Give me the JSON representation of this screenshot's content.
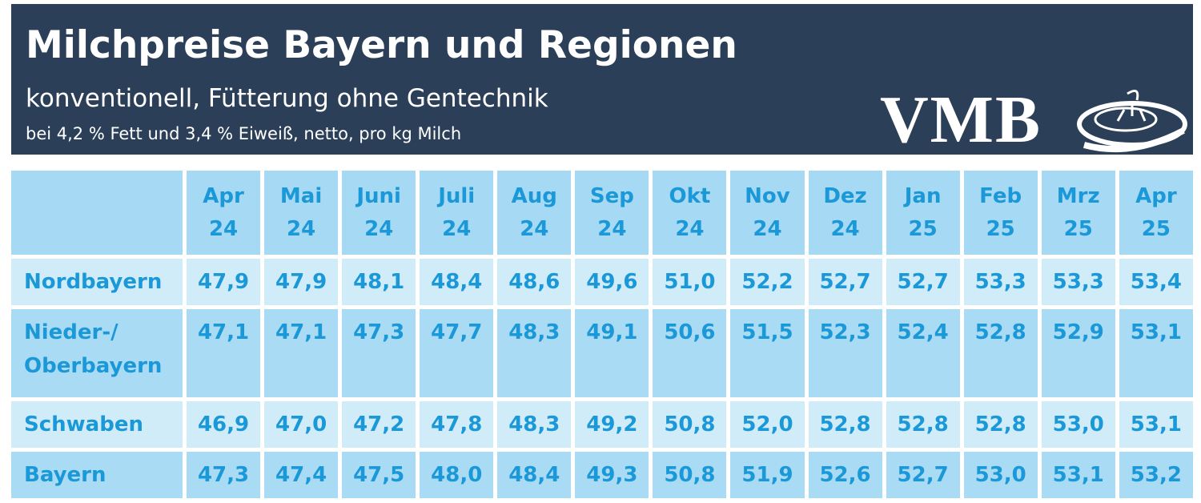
{
  "header": {
    "title": "Milchpreise Bayern und Regionen",
    "subtitle": "konventionell, Fütterung ohne Gentechnik",
    "note": "bei 4,2 % Fett und 3,4 % Eiweiß, netto, pro kg Milch",
    "logo": "VMB"
  },
  "table": {
    "columns": [
      [
        "Apr",
        "24"
      ],
      [
        "Mai",
        "24"
      ],
      [
        "Juni",
        "24"
      ],
      [
        "Juli",
        "24"
      ],
      [
        "Aug",
        "24"
      ],
      [
        "Sep",
        "24"
      ],
      [
        "Okt",
        "24"
      ],
      [
        "Nov",
        "24"
      ],
      [
        "Dez",
        "24"
      ],
      [
        "Jan",
        "25"
      ],
      [
        "Feb",
        "25"
      ],
      [
        "Mrz",
        "25"
      ],
      [
        "Apr",
        "25"
      ]
    ],
    "rows": [
      {
        "name": [
          "Nordbayern"
        ],
        "values": [
          "47,9",
          "47,9",
          "48,1",
          "48,4",
          "48,6",
          "49,6",
          "51,0",
          "52,2",
          "52,7",
          "52,7",
          "53,3",
          "53,3",
          "53,4"
        ]
      },
      {
        "name": [
          "Nieder-/",
          "Oberbayern"
        ],
        "values": [
          "47,1",
          "47,1",
          "47,3",
          "47,7",
          "48,3",
          "49,1",
          "50,6",
          "51,5",
          "52,3",
          "52,4",
          "52,8",
          "52,9",
          "53,1"
        ]
      },
      {
        "name": [
          "Schwaben"
        ],
        "values": [
          "46,9",
          "47,0",
          "47,2",
          "47,8",
          "48,3",
          "49,2",
          "50,8",
          "52,0",
          "52,8",
          "52,8",
          "52,8",
          "53,0",
          "53,1"
        ]
      },
      {
        "name": [
          "Bayern"
        ],
        "values": [
          "47,3",
          "47,4",
          "47,5",
          "48,0",
          "48,4",
          "49,3",
          "50,8",
          "51,9",
          "52,6",
          "52,7",
          "53,0",
          "53,1",
          "53,2"
        ]
      }
    ]
  }
}
